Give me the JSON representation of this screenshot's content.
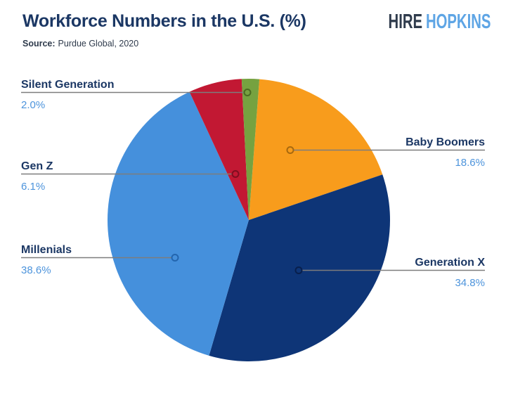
{
  "header": {
    "title": "Workforce Numbers in the U.S. (%)",
    "source_label": "Source:",
    "source_value": "Purdue Global, 2020",
    "logo_word1": "HIRE",
    "logo_word2": "HOPKINS"
  },
  "colors": {
    "title_navy": "#1B3764",
    "label_navy": "#1B3764",
    "pct_blue": "#4D94DC",
    "leader_line": "#7D7D7D",
    "logo_dark": "#2F3B4C",
    "logo_blue": "#5EA5E5",
    "background": "#FFFFFF"
  },
  "chart_data": {
    "type": "pie",
    "title": "Workforce Numbers in the U.S. (%)",
    "source": "Purdue Global, 2020",
    "units": "percent",
    "start_angle_deg": 4.3,
    "direction": "clockwise",
    "legend_position": "callouts",
    "slices": [
      {
        "label": "Baby Boomers",
        "value": 18.6,
        "display": "18.6%",
        "color": "#F89C1C",
        "marker_color": "#A8690E"
      },
      {
        "label": "Generation X",
        "value": 34.8,
        "display": "34.8%",
        "color": "#0E3577",
        "marker_color": "#081F4C"
      },
      {
        "label": "Millenials",
        "value": 38.6,
        "display": "38.6%",
        "color": "#4590DC",
        "marker_color": "#2365AE"
      },
      {
        "label": "Gen Z",
        "value": 6.1,
        "display": "6.1%",
        "color": "#C21833",
        "marker_color": "#7E0E20"
      },
      {
        "label": "Silent Generation",
        "value": 2.0,
        "display": "2.0%",
        "color": "#76A240",
        "marker_color": "#4A6B22"
      }
    ]
  },
  "callouts": [
    {
      "label": "Silent Generation",
      "pct": "2.0%"
    },
    {
      "label": "Gen Z",
      "pct": "6.1%"
    },
    {
      "label": "Millenials",
      "pct": "38.6%"
    },
    {
      "label": "Baby Boomers",
      "pct": "18.6%"
    },
    {
      "label": "Generation X",
      "pct": "34.8%"
    }
  ]
}
